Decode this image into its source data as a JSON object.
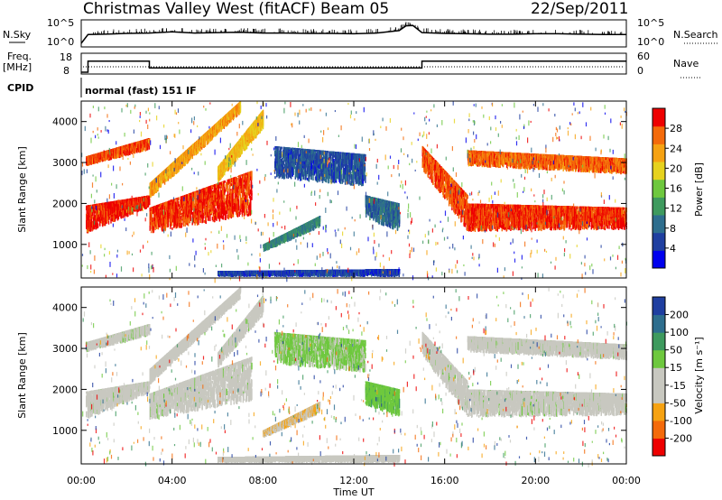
{
  "header": {
    "station": "Christmas Valley West (fitACF)",
    "beam": "Beam 05",
    "date": "22/Sep/2011"
  },
  "top_panels": {
    "nsky_label": "N.Sky",
    "nsky_ticks": [
      "10^5",
      "10^0"
    ],
    "nsearch_label": "N.Search",
    "nsearch_ticks": [
      "10^5",
      "10^0"
    ],
    "freq_label": "Freq.",
    "freq_unit": "[MHz]",
    "freq_ticks": [
      "18",
      "8"
    ],
    "nave_label": "Nave",
    "nave_ticks": [
      "60",
      "0"
    ],
    "cpid_label": "CPID",
    "cpid_text": "normal (fast) 151 IF"
  },
  "colors": {
    "power_scale": [
      "#0000ee",
      "#1f3fa0",
      "#2e6e8e",
      "#3e9a5e",
      "#6ec83e",
      "#e6d21e",
      "#f6a212",
      "#f46a0a",
      "#ee0000"
    ],
    "velocity_scale": [
      "#ee0000",
      "#f46a0a",
      "#f6a212",
      "#c8c8c0",
      "#c8c8c0",
      "#6ec83e",
      "#3e9a5e",
      "#2e6e8e",
      "#1f3fa0"
    ]
  },
  "chart_data": [
    {
      "type": "line",
      "name": "N.Sky / N.Search",
      "x_unit": "hours UT",
      "x": [
        0,
        0.3,
        1,
        2,
        3,
        4,
        5,
        6,
        7,
        8,
        9,
        10,
        11,
        12,
        13,
        14,
        14.3,
        14.6,
        15,
        16,
        17,
        18,
        19,
        20,
        21,
        22,
        23,
        24
      ],
      "y_log10": [
        0,
        2.2,
        2.3,
        2.5,
        2.6,
        2.9,
        2.6,
        2.7,
        2.8,
        2.6,
        2.6,
        2.5,
        2.5,
        2.4,
        2.6,
        3.2,
        4.4,
        4.5,
        2.7,
        2.5,
        2.4,
        2.3,
        2.3,
        2.4,
        2.4,
        2.3,
        2.2,
        2.2
      ],
      "ylim": [
        0,
        5
      ]
    },
    {
      "type": "line",
      "name": "Freq",
      "x_unit": "hours UT",
      "x": [
        0,
        0.3,
        0.3,
        3,
        3,
        15,
        15,
        24
      ],
      "y": [
        8,
        8,
        14.5,
        14.5,
        10.5,
        10.5,
        14.5,
        14.5
      ],
      "ylim": [
        8,
        18
      ]
    },
    {
      "type": "heatmap",
      "title": "Power [dB]",
      "xlabel": "",
      "ylabel": "Slant Range [km]",
      "xlim": [
        0,
        24
      ],
      "ylim": [
        180,
        4500
      ],
      "x_ticks": [
        "00:00",
        "04:00",
        "08:00",
        "12:00",
        "16:00",
        "20:00",
        "00:00"
      ],
      "y_ticks": [
        "1000",
        "2000",
        "3000",
        "4000"
      ],
      "colorbar_label": "Power [dB]",
      "colorbar_ticks": [
        "4",
        "8",
        "12",
        "16",
        "20",
        "24",
        "28"
      ],
      "colorbar_range": [
        0,
        30
      ],
      "bands": [
        {
          "t": [
            0.2,
            3.0
          ],
          "r0": [
            1250,
            1900
          ],
          "r1": [
            1950,
            2200
          ],
          "v": 28
        },
        {
          "t": [
            0.2,
            3.0
          ],
          "r0": [
            2900,
            3300
          ],
          "r1": [
            3150,
            3600
          ],
          "v": 26
        },
        {
          "t": [
            3.0,
            7.5
          ],
          "r0": [
            1250,
            1700
          ],
          "r1": [
            1900,
            2800
          ],
          "v": 27
        },
        {
          "t": [
            3.0,
            7.0
          ],
          "r0": [
            2100,
            4200
          ],
          "r1": [
            2500,
            4500
          ],
          "v": 22
        },
        {
          "t": [
            6.0,
            8.0
          ],
          "r0": [
            2500,
            3800
          ],
          "r1": [
            2900,
            4300
          ],
          "v": 20
        },
        {
          "t": [
            8.0,
            10.5
          ],
          "r0": [
            800,
            1400
          ],
          "r1": [
            1000,
            1700
          ],
          "v": 10
        },
        {
          "t": [
            8.5,
            12.5
          ],
          "r0": [
            2600,
            2400
          ],
          "r1": [
            3400,
            3200
          ],
          "v": 6
        },
        {
          "t": [
            12.5,
            14.0
          ],
          "r0": [
            1600,
            1300
          ],
          "r1": [
            2200,
            2000
          ],
          "v": 8
        },
        {
          "t": [
            15.0,
            17.0
          ],
          "r0": [
            2800,
            1300
          ],
          "r1": [
            3400,
            2200
          ],
          "v": 26
        },
        {
          "t": [
            17.0,
            24.0
          ],
          "r0": [
            1300,
            1350
          ],
          "r1": [
            2000,
            1900
          ],
          "v": 27
        },
        {
          "t": [
            17.0,
            24.0
          ],
          "r0": [
            2900,
            2700
          ],
          "r1": [
            3300,
            3100
          ],
          "v": 25
        },
        {
          "t": [
            6.0,
            14.0
          ],
          "r0": [
            200,
            200
          ],
          "r1": [
            350,
            400
          ],
          "v": 5
        }
      ]
    },
    {
      "type": "heatmap",
      "title": "Velocity [m s-1]",
      "xlabel": "Time UT",
      "ylabel": "Slant Range [km]",
      "xlim": [
        0,
        24
      ],
      "ylim": [
        180,
        4500
      ],
      "x_ticks": [
        "00:00",
        "04:00",
        "08:00",
        "12:00",
        "16:00",
        "20:00",
        "00:00"
      ],
      "y_ticks": [
        "1000",
        "2000",
        "3000",
        "4000"
      ],
      "colorbar_label": "Velocity [m s⁻¹]",
      "colorbar_ticks": [
        "200",
        "100",
        "50",
        "15",
        "-15",
        "-50",
        "-100",
        "-200"
      ],
      "colorbar_range": [
        -250,
        250
      ],
      "bands": [
        {
          "t": [
            0.2,
            3.0
          ],
          "r0": [
            1250,
            1900
          ],
          "r1": [
            1950,
            2200
          ],
          "v": 0
        },
        {
          "t": [
            0.2,
            3.0
          ],
          "r0": [
            2900,
            3300
          ],
          "r1": [
            3150,
            3600
          ],
          "v": 0
        },
        {
          "t": [
            3.0,
            7.5
          ],
          "r0": [
            1250,
            1700
          ],
          "r1": [
            1900,
            2800
          ],
          "v": 0
        },
        {
          "t": [
            3.0,
            7.0
          ],
          "r0": [
            2100,
            4200
          ],
          "r1": [
            2500,
            4500
          ],
          "v": -30
        },
        {
          "t": [
            6.0,
            8.0
          ],
          "r0": [
            2500,
            3800
          ],
          "r1": [
            2900,
            4300
          ],
          "v": 0
        },
        {
          "t": [
            8.0,
            10.5
          ],
          "r0": [
            800,
            1400
          ],
          "r1": [
            1000,
            1700
          ],
          "v": -80
        },
        {
          "t": [
            8.5,
            12.5
          ],
          "r0": [
            2600,
            2400
          ],
          "r1": [
            3400,
            3200
          ],
          "v": 40
        },
        {
          "t": [
            12.5,
            14.0
          ],
          "r0": [
            1600,
            1300
          ],
          "r1": [
            2200,
            2000
          ],
          "v": 60
        },
        {
          "t": [
            15.0,
            17.0
          ],
          "r0": [
            2800,
            1300
          ],
          "r1": [
            3400,
            2200
          ],
          "v": 0
        },
        {
          "t": [
            17.0,
            24.0
          ],
          "r0": [
            1300,
            1350
          ],
          "r1": [
            2000,
            1900
          ],
          "v": 0
        },
        {
          "t": [
            17.0,
            24.0
          ],
          "r0": [
            2900,
            2700
          ],
          "r1": [
            3300,
            3100
          ],
          "v": 0
        },
        {
          "t": [
            6.0,
            14.0
          ],
          "r0": [
            200,
            200
          ],
          "r1": [
            350,
            400
          ],
          "v": -40
        }
      ]
    }
  ]
}
